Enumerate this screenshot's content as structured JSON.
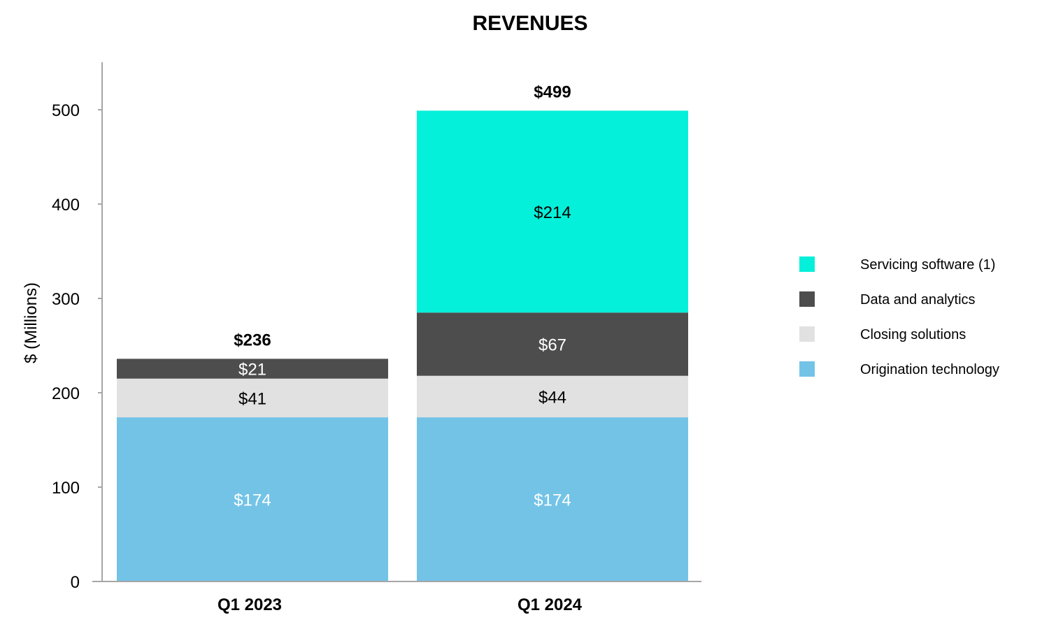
{
  "chart_data": {
    "type": "bar",
    "stacked": true,
    "title": "REVENUES",
    "xlabel": "",
    "ylabel": "$ (Millions)",
    "ylim": [
      0,
      550
    ],
    "yticks": [
      0,
      100,
      200,
      300,
      400,
      500
    ],
    "grid": false,
    "legend_position": "right",
    "categories": [
      "Q1 2023",
      "Q1 2024"
    ],
    "series": [
      {
        "name": "Origination technology",
        "values": [
          174,
          174
        ],
        "labels": [
          "$174",
          "$174"
        ],
        "color": "#73c3e7",
        "label_color": "#ffffff"
      },
      {
        "name": "Closing solutions",
        "values": [
          41,
          44
        ],
        "labels": [
          "$41",
          "$44"
        ],
        "color": "#e1e1e1",
        "label_color": "#000000"
      },
      {
        "name": "Data and analytics",
        "values": [
          21,
          67
        ],
        "labels": [
          "$21",
          "$67"
        ],
        "color": "#4d4d4d",
        "label_color": "#ffffff"
      },
      {
        "name": "Servicing software (1)",
        "values": [
          0,
          214
        ],
        "labels": [
          "",
          "$214"
        ],
        "color": "#05f0da",
        "label_color": "#000000"
      }
    ],
    "totals": [
      236,
      499
    ],
    "total_labels": [
      "$236",
      "$499"
    ]
  }
}
